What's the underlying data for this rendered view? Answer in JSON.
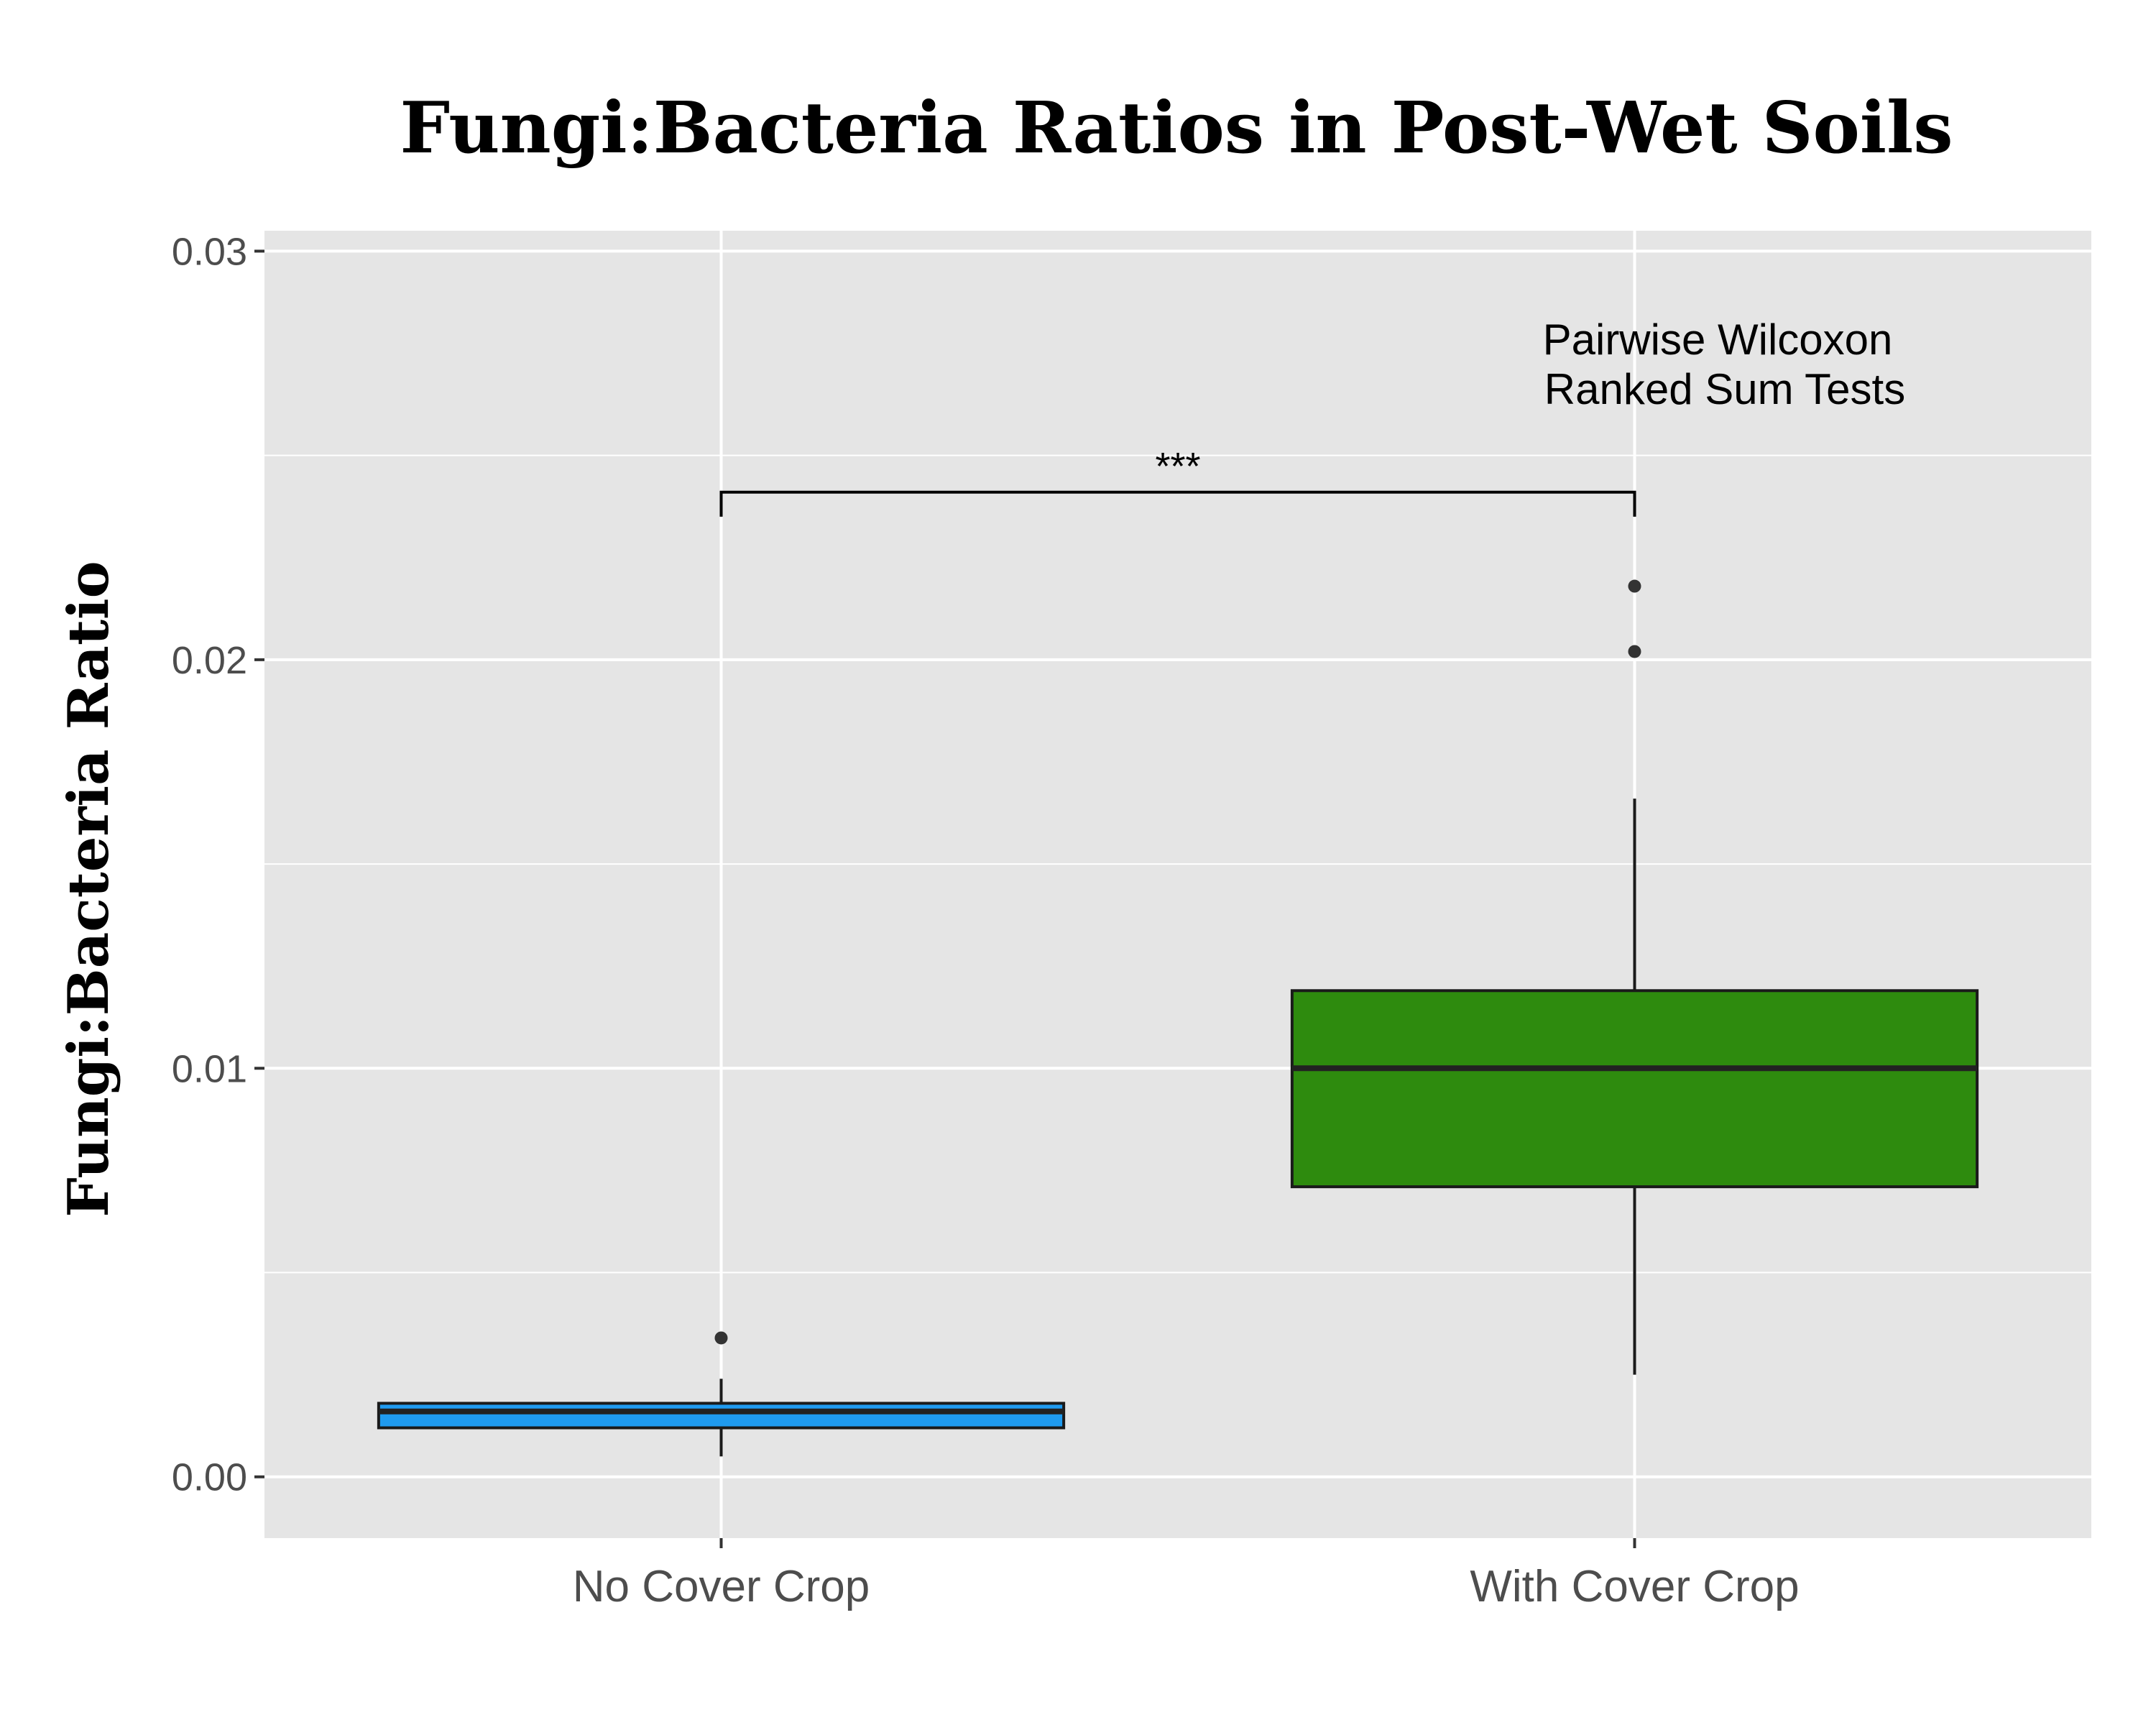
{
  "chart_data": {
    "type": "box",
    "title": "Fungi:Bacteria Ratios in Post-Wet Soils",
    "xlabel": "",
    "ylabel": "Fungi:Bacteria Ratio",
    "ylim": [
      -0.0015,
      0.0305
    ],
    "yticks": [
      0.0,
      0.01,
      0.02,
      0.03
    ],
    "ytick_labels": [
      "0.00",
      "0.01",
      "0.02",
      "0.03"
    ],
    "grid": true,
    "legend": "none",
    "categories": [
      "No Cover Crop",
      "With Cover Crop"
    ],
    "boxes": [
      {
        "category": "No Cover Crop",
        "whisker_low": 0.0005,
        "q1": 0.0012,
        "median": 0.0016,
        "q3": 0.0018,
        "whisker_high": 0.0024,
        "outliers": [
          0.0034
        ],
        "fill": "#1f9bf0"
      },
      {
        "category": "With Cover Crop",
        "whisker_low": 0.0025,
        "q1": 0.0071,
        "median": 0.01,
        "q3": 0.0119,
        "whisker_high": 0.0166,
        "outliers": [
          0.0202,
          0.0218
        ],
        "fill": "#2e8b0e"
      }
    ],
    "annotations": {
      "test_lines": [
        "Pairwise Wilcoxon",
        "Ranked Sum Tests"
      ],
      "significance": "***",
      "bracket_y": 0.0241,
      "bracket_tip_y": 0.0235
    },
    "colors": {
      "panel_background": "#e5e5e5",
      "grid": "#ffffff",
      "median_line": "#222222",
      "outline": "#1a1a1a"
    }
  }
}
